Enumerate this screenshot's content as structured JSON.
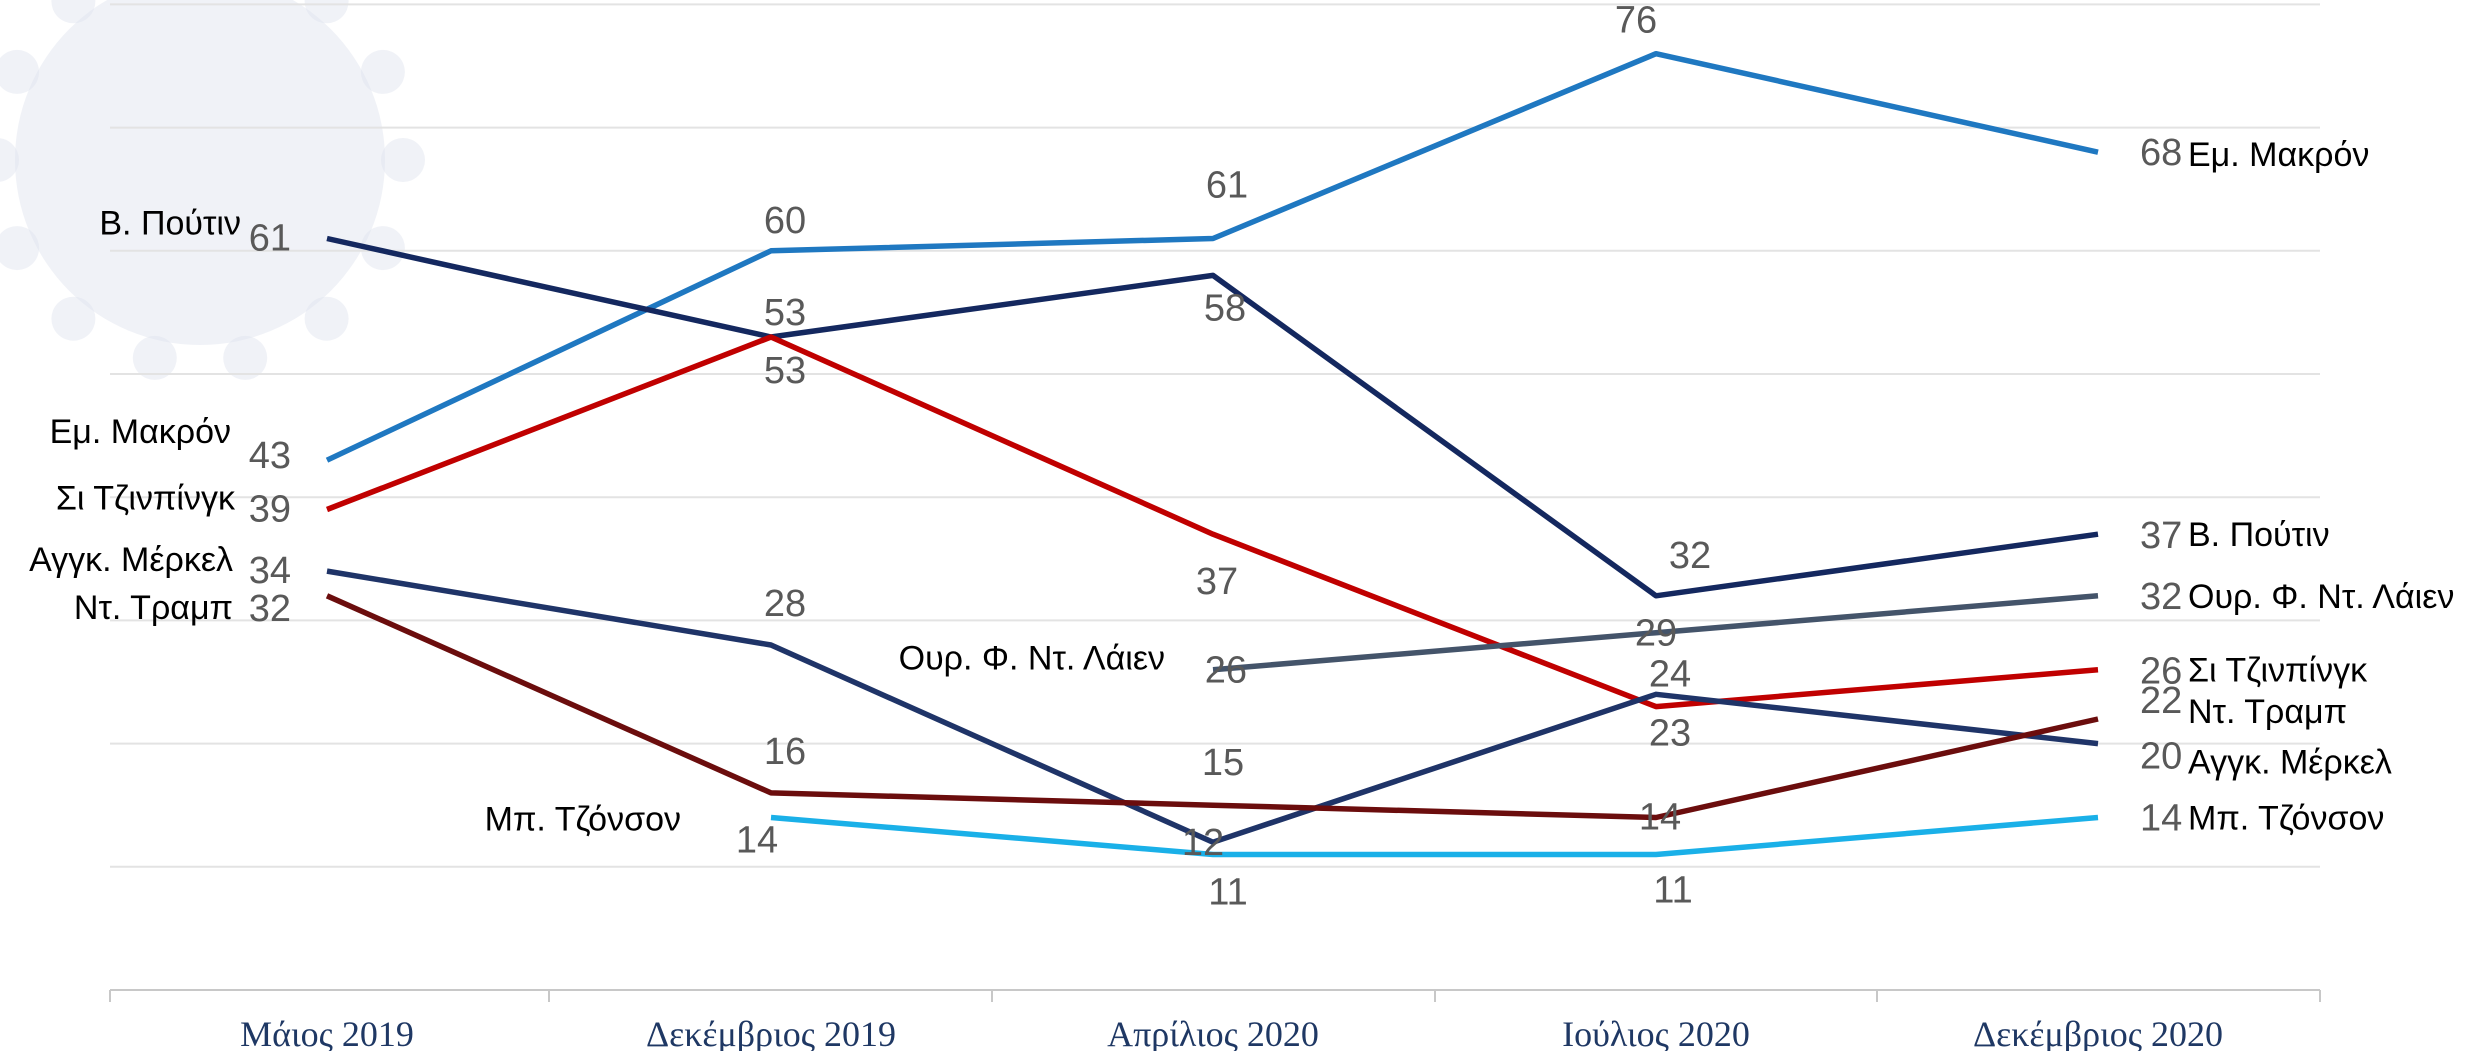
{
  "chart_data": {
    "type": "line",
    "categories": [
      "Μάιος 2019",
      "Δεκέμβριος 2019",
      "Απρίλιος 2020",
      "Ιούλιος 2020",
      "Δεκέμβριος 2020"
    ],
    "ylim": [
      0,
      80
    ],
    "grid": true,
    "legend": "none",
    "series": [
      {
        "name": "Εμ. Μακρόν",
        "color": "#1f78c1",
        "values": [
          43,
          60,
          61,
          76,
          68
        ]
      },
      {
        "name": "Β. Πούτιν",
        "color": "#14285f",
        "values": [
          61,
          53,
          58,
          32,
          37
        ]
      },
      {
        "name": "Σι Τζινπίνγκ",
        "color": "#c00000",
        "values": [
          39,
          53,
          37,
          23,
          26
        ]
      },
      {
        "name": "Αγγκ. Μέρκελ",
        "color": "#1f3468",
        "values": [
          34,
          28,
          12,
          24,
          20
        ]
      },
      {
        "name": "Ντ. Τραμπ",
        "color": "#6b0d0d",
        "values": [
          32,
          16,
          15,
          14,
          22
        ]
      },
      {
        "name": "Ουρ. Φ. Ντ. Λάιεν",
        "color": "#44546a",
        "values": [
          null,
          null,
          26,
          29,
          32
        ]
      },
      {
        "name": "Μπ. Τζόνσον",
        "color": "#1ab0e8",
        "values": [
          null,
          14,
          11,
          11,
          14
        ]
      }
    ]
  }
}
